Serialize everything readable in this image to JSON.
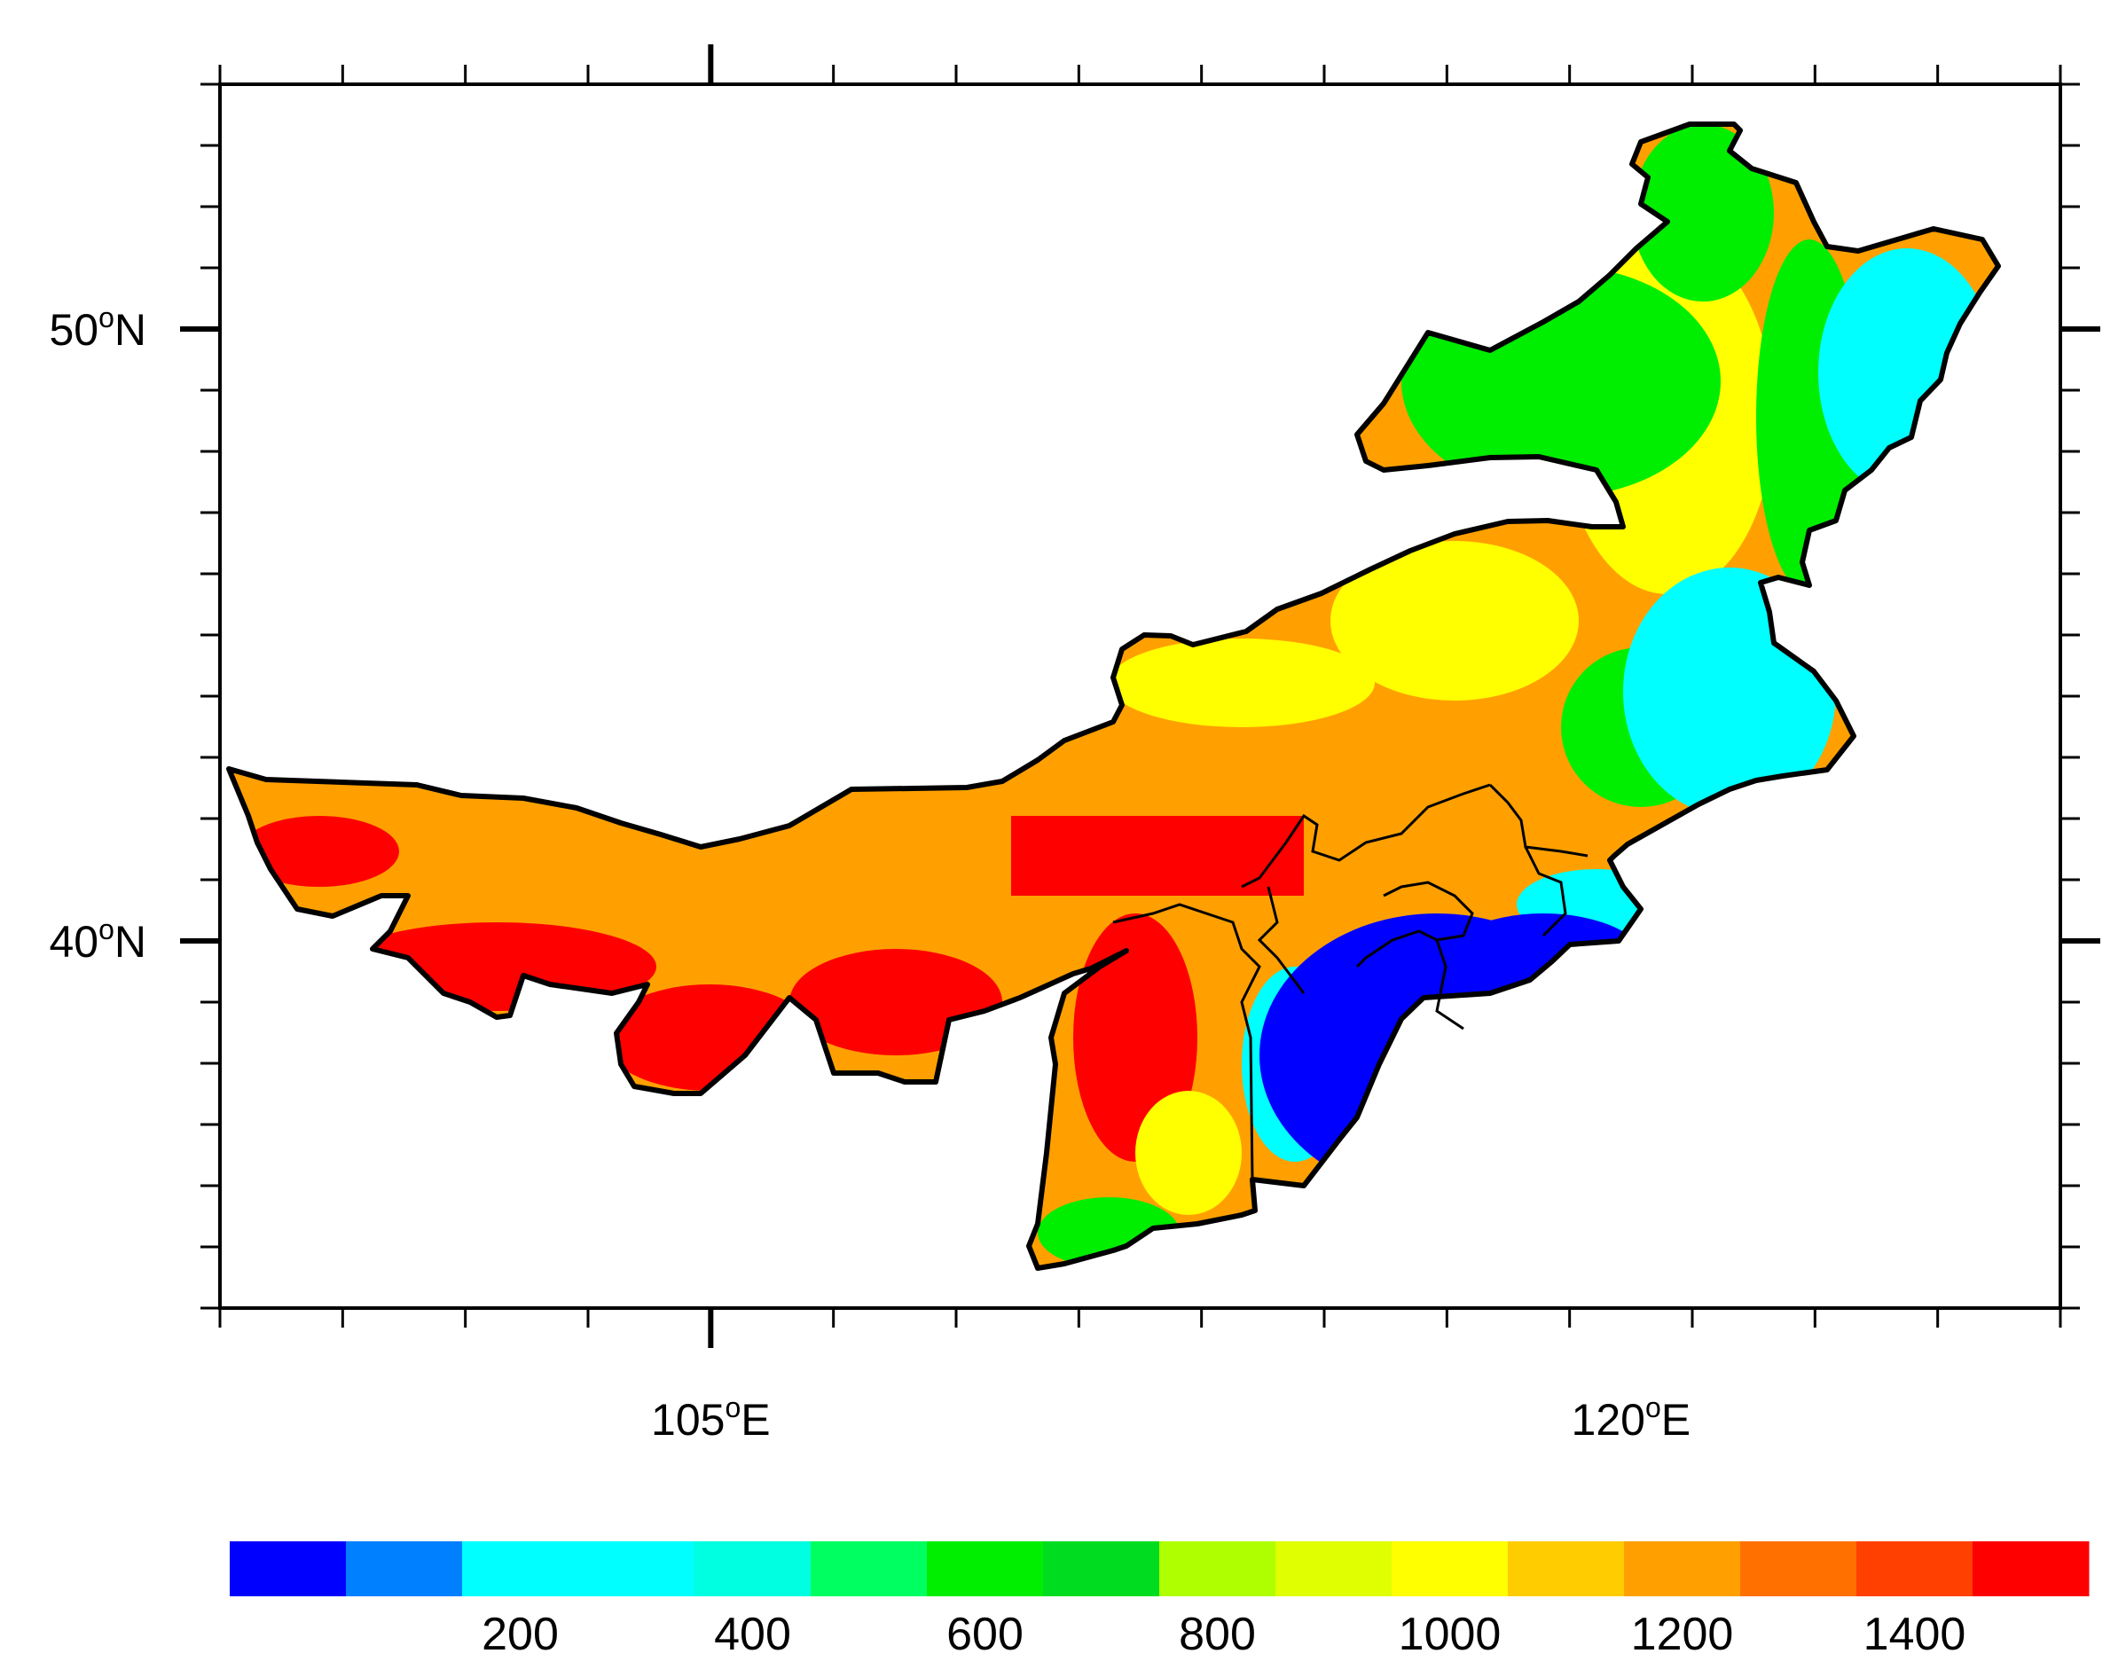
{
  "map": {
    "lon_labels": [
      {
        "deg": "105",
        "hemi": "E",
        "lon": 105
      },
      {
        "deg": "120",
        "hemi": "E",
        "lon": 120
      }
    ],
    "lat_labels": [
      {
        "deg": "50",
        "hemi": "N",
        "lat": 50
      },
      {
        "deg": "40",
        "hemi": "N",
        "lat": 40
      }
    ],
    "lon_range": [
      97,
      127
    ],
    "lat_range": [
      34,
      54
    ],
    "degree_symbol": "o"
  },
  "colorbar": {
    "colors": [
      "#0000ff",
      "#0080ff",
      "#00ffff",
      "#00ffff",
      "#00ffe0",
      "#00ff60",
      "#00ee00",
      "#00dd20",
      "#b0ff00",
      "#e0ff00",
      "#ffff00",
      "#ffcc00",
      "#ffa000",
      "#ff7000",
      "#ff4000",
      "#ff0000"
    ],
    "tick_labels": [
      "200",
      "400",
      "600",
      "800",
      "1000",
      "1200",
      "1400"
    ],
    "tick_after_bin": [
      2,
      4,
      6,
      8,
      10,
      12,
      14
    ]
  },
  "legend_colors": {
    "very_low": "#0000ff",
    "low": "#00ffff",
    "mid": "#00ee00",
    "mid_high": "#ffff00",
    "high": "#ffa000",
    "very_high": "#ff0000"
  }
}
